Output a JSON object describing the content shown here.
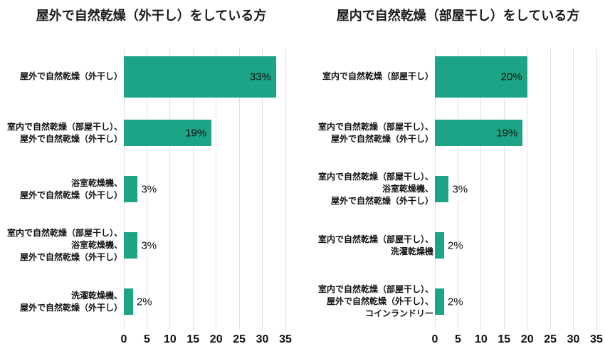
{
  "colors": {
    "bar": "#1ba485",
    "grid": "#e1e1e1",
    "text": "#1a1a1a"
  },
  "chart_data": [
    {
      "type": "bar",
      "orientation": "horizontal",
      "title": "屋外で自然乾燥（外干し）をしている方",
      "categories": [
        [
          "屋外で自然乾燥（外干し）"
        ],
        [
          "室内で自然乾燥（部屋干し）、",
          "屋外で自然乾燥（外干し）"
        ],
        [
          "浴室乾燥機、",
          "屋外で自然乾燥（外干し）"
        ],
        [
          "室内で自然乾燥（部屋干し）、",
          "浴室乾燥機、",
          "屋外で自然乾燥（外干し）"
        ],
        [
          "洗濯乾燥機、",
          "屋外で自然乾燥（外干し）"
        ]
      ],
      "values": [
        33,
        19,
        3,
        3,
        2
      ],
      "value_labels": [
        "33%",
        "19%",
        "3%",
        "3%",
        "2%"
      ],
      "xlim": [
        0,
        35
      ],
      "x_ticks": [
        0,
        5,
        10,
        15,
        20,
        25,
        30,
        35
      ],
      "grid": true,
      "legend": false
    },
    {
      "type": "bar",
      "orientation": "horizontal",
      "title": "屋内で自然乾燥（部屋干し）をしている方",
      "categories": [
        [
          "室内で自然乾燥（部屋干し）"
        ],
        [
          "室内で自然乾燥（部屋干し）、",
          "屋外で自然乾燥（外干し）"
        ],
        [
          "室内で自然乾燥（部屋干し）、",
          "浴室乾燥機、",
          "屋外で自然乾燥（外干し）"
        ],
        [
          "室内で自然乾燥（部屋干し）、",
          "洗濯乾燥機"
        ],
        [
          "室内で自然乾燥（部屋干し）、",
          "屋外で自然乾燥（外干し）、",
          "コインランドリー"
        ]
      ],
      "values": [
        20,
        19,
        3,
        2,
        2
      ],
      "value_labels": [
        "20%",
        "19%",
        "3%",
        "2%",
        "2%"
      ],
      "xlim": [
        0,
        35
      ],
      "x_ticks": [
        0,
        5,
        10,
        15,
        20,
        25,
        30,
        35
      ],
      "grid": true,
      "legend": false
    }
  ]
}
